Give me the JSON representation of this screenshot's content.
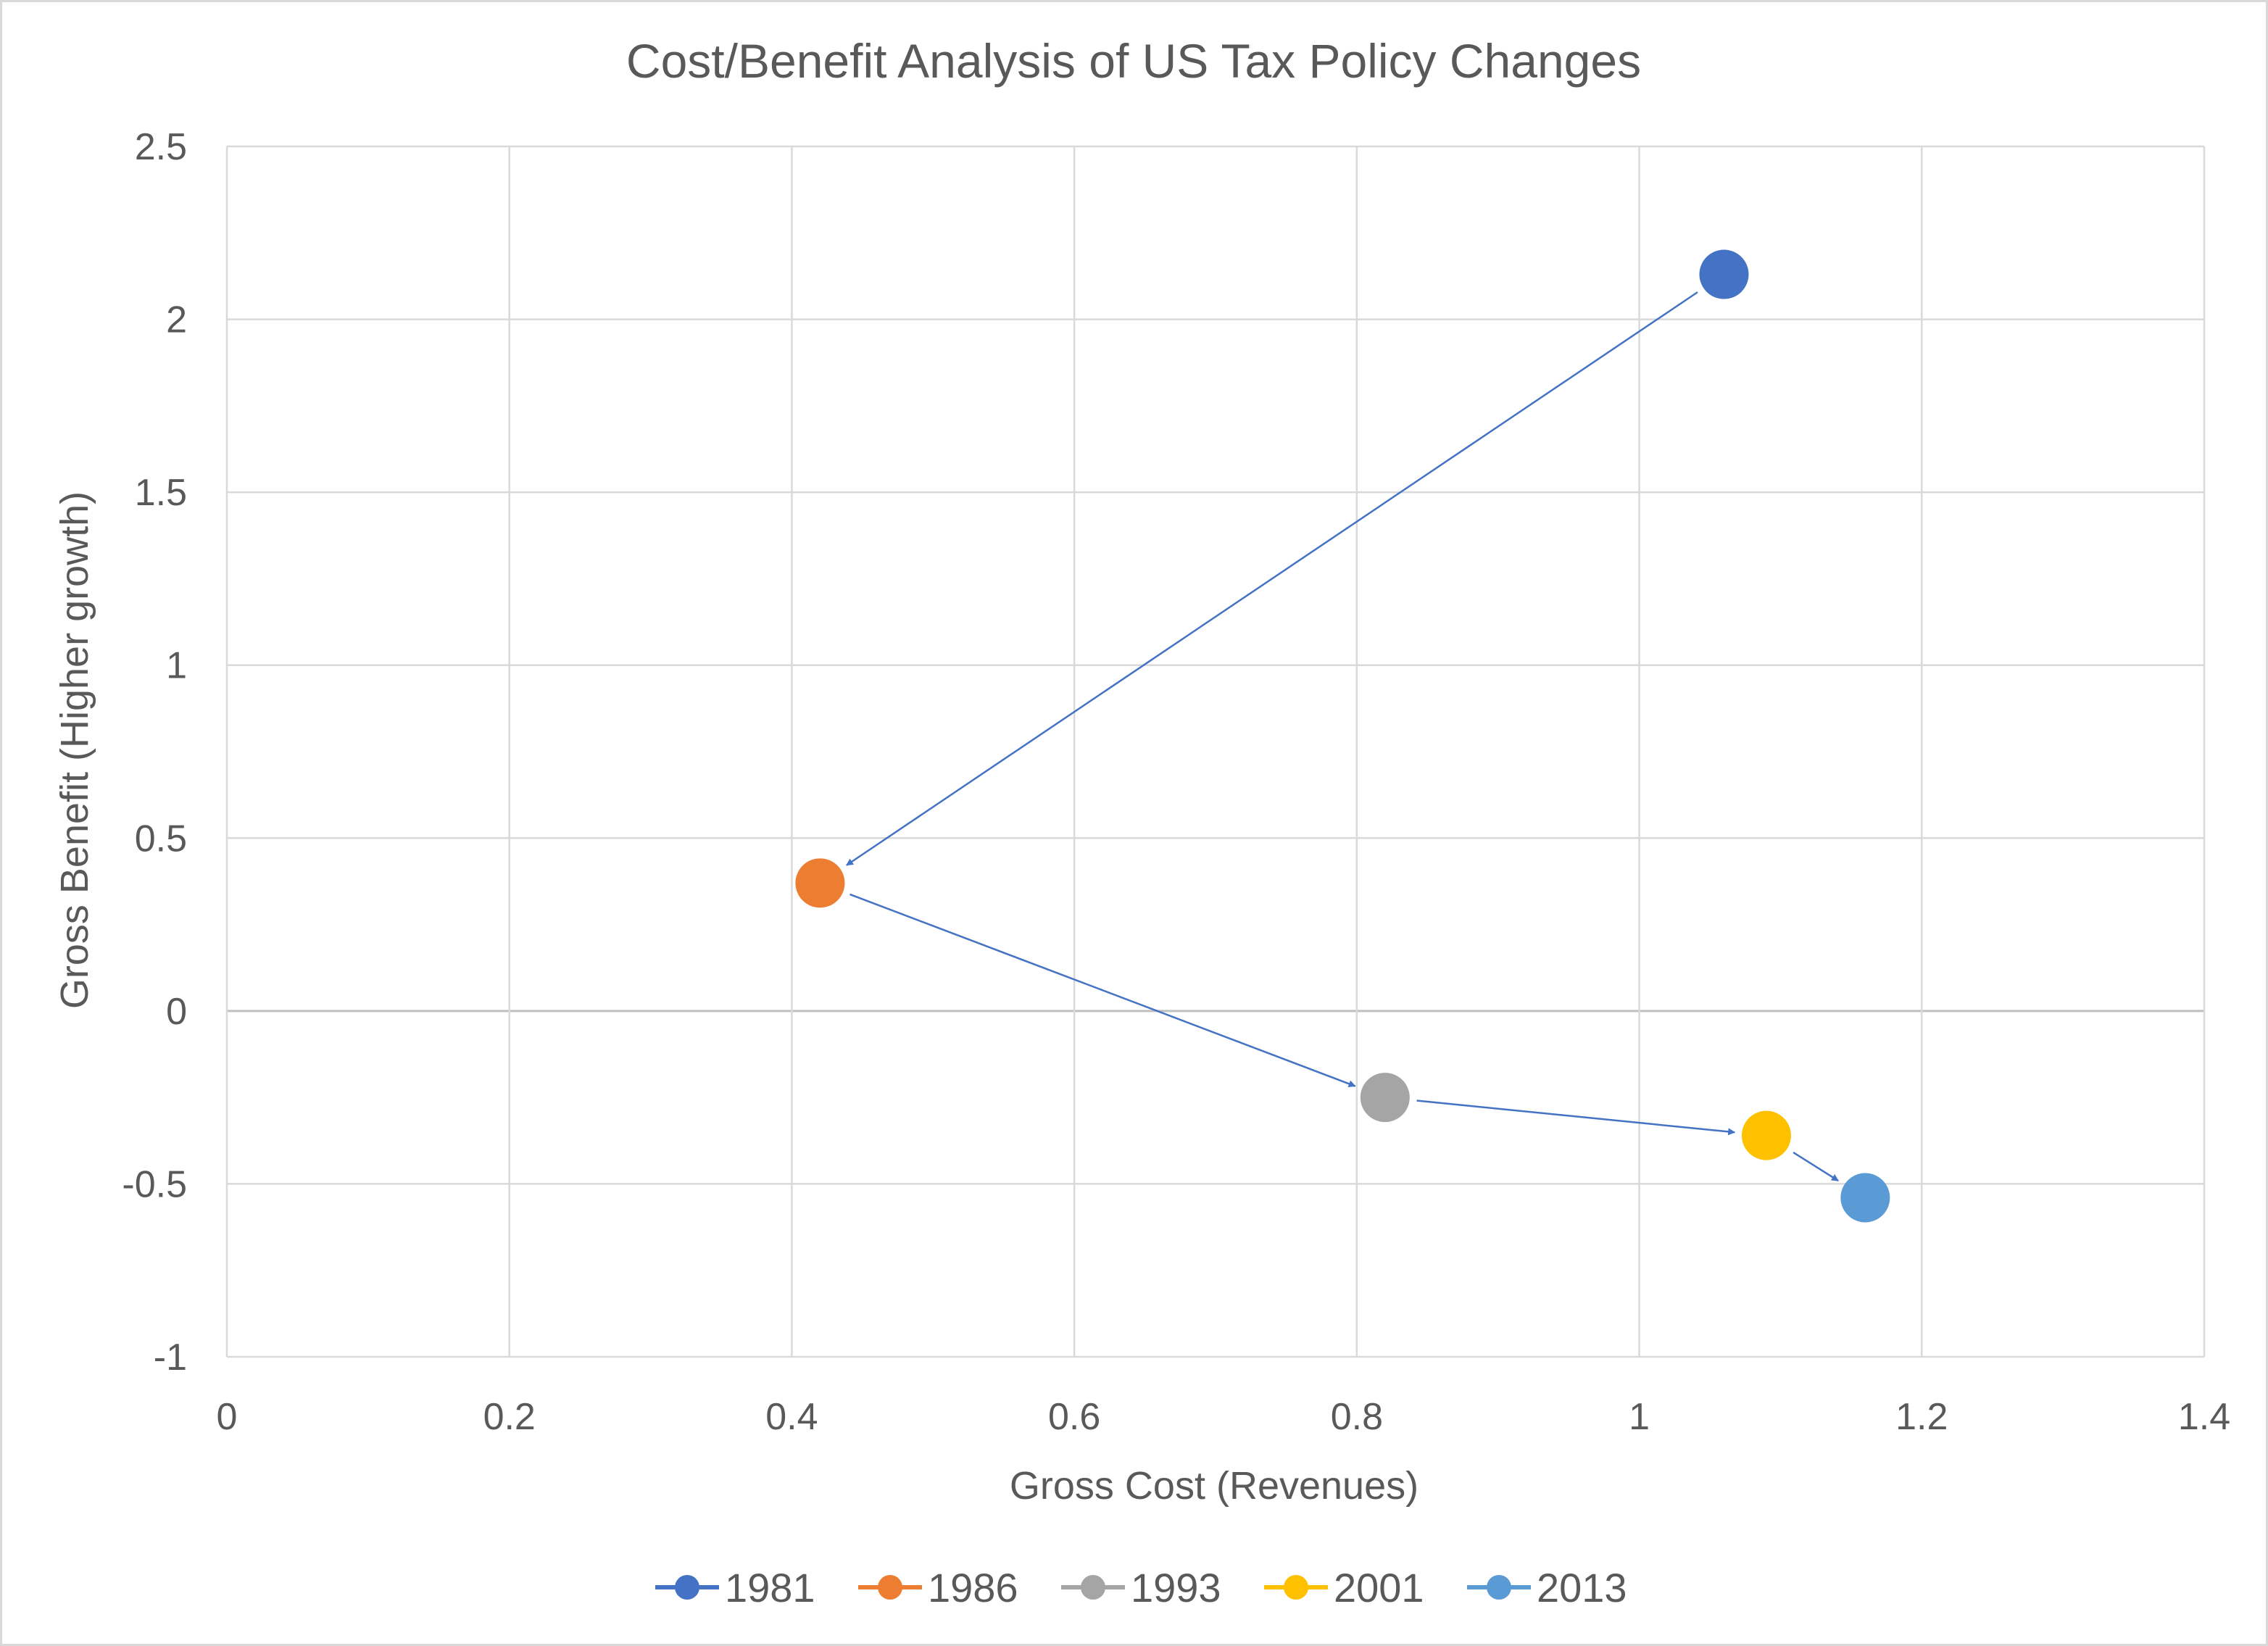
{
  "chart_data": {
    "type": "scatter",
    "title": "Cost/Benefit Analysis of US Tax Policy Changes",
    "xlabel": "Gross Cost (Revenues)",
    "ylabel": "Gross Benefit (Higher growth)",
    "xlim": [
      0,
      1.4
    ],
    "ylim": [
      -1,
      2.5
    ],
    "x_ticks": [
      0,
      0.2,
      0.4,
      0.6,
      0.8,
      1,
      1.2,
      1.4
    ],
    "x_tick_labels": [
      "0",
      "0.2",
      "0.4",
      "0.6",
      "0.8",
      "1",
      "1.2",
      "1.4"
    ],
    "y_ticks": [
      -1,
      -0.5,
      0,
      0.5,
      1,
      1.5,
      2,
      2.5
    ],
    "y_tick_labels": [
      "-1",
      "-0.5",
      "0",
      "0.5",
      "1",
      "1.5",
      "2",
      "2.5"
    ],
    "grid": true,
    "legend_position": "bottom",
    "series": [
      {
        "name": "1981",
        "x": 1.06,
        "y": 2.13,
        "color": "#4472c4"
      },
      {
        "name": "1986",
        "x": 0.42,
        "y": 0.37,
        "color": "#ed7d31"
      },
      {
        "name": "1993",
        "x": 0.82,
        "y": -0.25,
        "color": "#a5a5a5"
      },
      {
        "name": "2001",
        "x": 1.09,
        "y": -0.36,
        "color": "#ffc000"
      },
      {
        "name": "2013",
        "x": 1.16,
        "y": -0.54,
        "color": "#5b9bd5"
      }
    ],
    "arrows": [
      {
        "from": "1981",
        "to": "1986"
      },
      {
        "from": "1986",
        "to": "1993"
      },
      {
        "from": "1993",
        "to": "2001"
      },
      {
        "from": "2001",
        "to": "2013"
      }
    ],
    "arrow_color": "#4472c4"
  }
}
